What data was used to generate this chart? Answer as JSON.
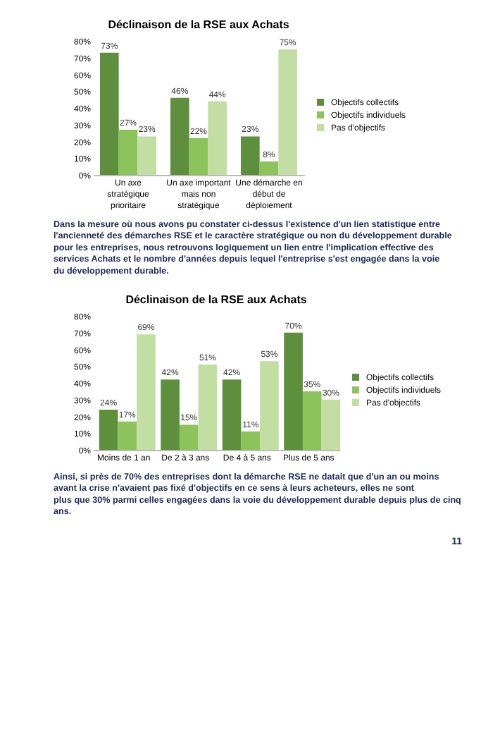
{
  "chart_data": [
    {
      "type": "bar",
      "title": "Déclinaison de la RSE aux Achats",
      "categories": [
        "Un axe stratégique prioritaire",
        "Un axe important mais non stratégique",
        "Une démarche en début de déploiement"
      ],
      "series": [
        {
          "name": "Objectifs collectifs",
          "color": "#5e8f3c",
          "values": [
            73,
            46,
            23
          ],
          "value_labels": [
            "73%",
            "46%",
            "23%"
          ]
        },
        {
          "name": "Objectifs individuels",
          "color": "#8dc35b",
          "values": [
            27,
            22,
            8
          ],
          "value_labels": [
            "27%",
            "22%",
            "8%"
          ]
        },
        {
          "name": "Pas d'objectifs",
          "color": "#c3dea3",
          "values": [
            23,
            44,
            75
          ],
          "value_labels": [
            "23%",
            "44%",
            "75%"
          ]
        }
      ],
      "ylim": [
        0,
        80
      ],
      "yticks": [
        {
          "value": 0,
          "label": "0%"
        },
        {
          "value": 10,
          "label": "10%"
        },
        {
          "value": 20,
          "label": "20%"
        },
        {
          "value": 30,
          "label": "30%"
        },
        {
          "value": 40,
          "label": "40%"
        },
        {
          "value": 50,
          "label": "50%"
        },
        {
          "value": 60,
          "label": "60%"
        },
        {
          "value": 70,
          "label": "70%"
        },
        {
          "value": 80,
          "label": "80%"
        }
      ],
      "grid": false,
      "legend": "right",
      "annotations": [
        "Dans la mesure où nous avons pu constater ci-dessus l'existence d'un lien statistique entre l'ancienneté des démarches RSE et le caractère stratégique ou non du développement durable pour les entreprises, nous retrouvons logiquement un lien entre l'implication effective des services Achats et le nombre d'années depuis lequel l'entreprise s'est engagée dans la voie du développement durable."
      ]
    },
    {
      "type": "bar",
      "title": "Déclinaison de la RSE aux Achats",
      "categories": [
        "Moins de 1 an",
        "De 2 à 3 ans",
        "De 4 à 5 ans",
        "Plus de 5 ans"
      ],
      "series": [
        {
          "name": "Objectifs collectifs",
          "color": "#5e8f3c",
          "values": [
            24,
            42,
            42,
            70
          ],
          "value_labels": [
            "24%",
            "42%",
            "42%",
            "70%"
          ]
        },
        {
          "name": "Objectifs individuels",
          "color": "#8dc35b",
          "values": [
            17,
            15,
            11,
            35
          ],
          "value_labels": [
            "17%",
            "15%",
            "11%",
            "35%"
          ]
        },
        {
          "name": "Pas d'objectifs",
          "color": "#c3dea3",
          "values": [
            69,
            51,
            53,
            30
          ],
          "value_labels": [
            "69%",
            "51%",
            "53%",
            "30%"
          ]
        }
      ],
      "ylim": [
        0,
        80
      ],
      "yticks": [
        {
          "value": 0,
          "label": "0%"
        },
        {
          "value": 10,
          "label": "10%"
        },
        {
          "value": 20,
          "label": "20%"
        },
        {
          "value": 30,
          "label": "30%"
        },
        {
          "value": 40,
          "label": "40%"
        },
        {
          "value": 50,
          "label": "50%"
        },
        {
          "value": 60,
          "label": "60%"
        },
        {
          "value": 70,
          "label": "70%"
        },
        {
          "value": 80,
          "label": "80%"
        }
      ],
      "grid": false,
      "legend": "right",
      "annotations": [
        "Ainsi, si près de 70% des entreprises dont la démarche RSE ne datait que d'un an ou moins avant la crise n'avaient pas fixé d'objectifs en ce sens à leurs acheteurs, elles ne sont plus que 30% parmi celles engagées dans la voie du développement durable depuis plus de cinq ans.",
        "11"
      ]
    }
  ]
}
